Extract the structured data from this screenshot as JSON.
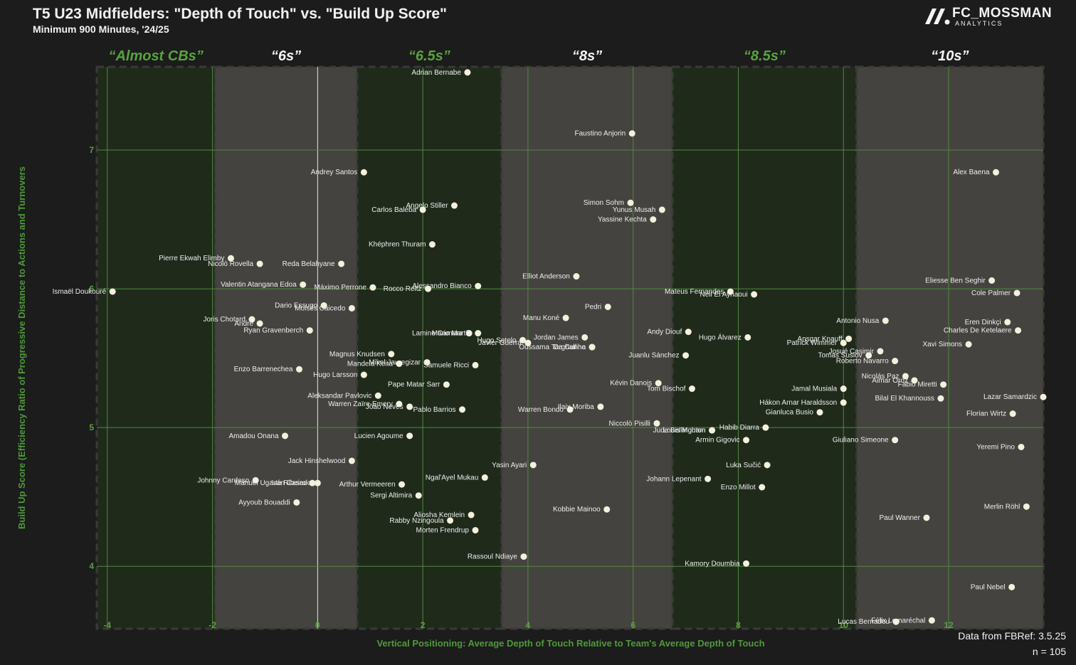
{
  "header": {
    "title": "T5 U23 Midfielders: \"Depth of Touch\" vs. \"Build Up Score\"",
    "subtitle": "Minimum 900 Minutes, '24/25"
  },
  "logo": {
    "name": "FC_MOSSMAN",
    "sub": "ANALYTICS"
  },
  "footer": {
    "source": "Data from FBRef: 3.5.25",
    "count": "n = 105"
  },
  "chart_data": {
    "type": "scatter",
    "xlabel": "Vertical Positioning: Average Depth of Touch Relative to Team's Average Depth of Touch",
    "ylabel": "Build Up Score (Efficiency Ratio of Progressive Distance to Actions and Turnovers",
    "xlim": [
      -4.2,
      13.8
    ],
    "ylim": [
      3.55,
      7.6
    ],
    "xticks": [
      "-4",
      "-2",
      "0",
      "2",
      "4",
      "6",
      "8",
      "10",
      "12"
    ],
    "xtick_values": [
      -4,
      -2,
      0,
      2,
      4,
      6,
      8,
      10,
      12
    ],
    "yticks": [
      "4",
      "5",
      "6",
      "7"
    ],
    "ytick_values": [
      4,
      5,
      6,
      7
    ],
    "grid": true,
    "colors": {
      "green_zone": "#1f2a1b",
      "gray_zone": "#454340",
      "grid": "#4f8a3c",
      "point": "#f3f1dc",
      "green_label": "#58a43c"
    },
    "zones": [
      {
        "label": "“Almost CBs”",
        "x0": -4.2,
        "x1": -1.95,
        "fill": "green"
      },
      {
        "label": "“6s”",
        "x0": -1.95,
        "x1": 0.75,
        "fill": "gray"
      },
      {
        "label": "“6.5s”",
        "x0": 0.75,
        "x1": 3.5,
        "fill": "green"
      },
      {
        "label": "“8s”",
        "x0": 3.5,
        "x1": 6.75,
        "fill": "gray"
      },
      {
        "label": "“8.5s”",
        "x0": 6.75,
        "x1": 10.25,
        "fill": "green"
      },
      {
        "label": "“10s”",
        "x0": 10.25,
        "x1": 13.8,
        "fill": "gray"
      }
    ],
    "points": [
      {
        "name": "Ismaël Doukouré",
        "x": -3.9,
        "y": 5.98
      },
      {
        "name": "Pierre Ekwah Elimby",
        "x": -1.65,
        "y": 6.22
      },
      {
        "name": "Nicolò Rovella",
        "x": -1.1,
        "y": 6.18
      },
      {
        "name": "Reda Belahyane",
        "x": 0.45,
        "y": 6.18
      },
      {
        "name": "Valentin Atangana Edoa",
        "x": -0.28,
        "y": 6.03
      },
      {
        "name": "Máximo Perrone",
        "x": 1.05,
        "y": 6.01
      },
      {
        "name": "Rocco Reitz",
        "x": 2.1,
        "y": 6.0
      },
      {
        "name": "Alessandro Bianco",
        "x": 3.05,
        "y": 6.02
      },
      {
        "name": "Dario Essugo",
        "x": 0.12,
        "y": 5.88
      },
      {
        "name": "Moisés Caicedo",
        "x": 0.65,
        "y": 5.86
      },
      {
        "name": "Joris Chotard",
        "x": -1.25,
        "y": 5.78
      },
      {
        "name": "André",
        "x": -1.1,
        "y": 5.75
      },
      {
        "name": "Ryan Gravenberch",
        "x": -0.15,
        "y": 5.7
      },
      {
        "name": "Andrey Santos",
        "x": 0.88,
        "y": 6.84
      },
      {
        "name": "Angelo Stiller",
        "x": 2.6,
        "y": 6.6
      },
      {
        "name": "Carlos Baleba",
        "x": 2.0,
        "y": 6.57
      },
      {
        "name": "Khéphren Thuram",
        "x": 2.18,
        "y": 6.32
      },
      {
        "name": "Adrian Bernabe",
        "x": 2.85,
        "y": 7.56
      },
      {
        "name": "Lamine Camara",
        "x": 2.88,
        "y": 5.68
      },
      {
        "name": "Mario Martín",
        "x": 3.05,
        "y": 5.68
      },
      {
        "name": "Hugo Sotelo",
        "x": 3.9,
        "y": 5.63
      },
      {
        "name": "Magnus Knudsen",
        "x": 1.4,
        "y": 5.53
      },
      {
        "name": "Mandela Keita",
        "x": 1.55,
        "y": 5.46
      },
      {
        "name": "Mikel Jauregizar",
        "x": 2.08,
        "y": 5.47
      },
      {
        "name": "Samuele Ricci",
        "x": 3.0,
        "y": 5.45
      },
      {
        "name": "Enzo Barrenechea",
        "x": -0.35,
        "y": 5.42
      },
      {
        "name": "Hugo Larsson",
        "x": 0.88,
        "y": 5.38
      },
      {
        "name": "Pape Matar Sarr",
        "x": 2.45,
        "y": 5.31
      },
      {
        "name": "Aleksandar Pavlovic",
        "x": 1.15,
        "y": 5.23
      },
      {
        "name": "Warren Zaïre-Emery",
        "x": 1.55,
        "y": 5.17
      },
      {
        "name": "João Neves",
        "x": 1.75,
        "y": 5.15
      },
      {
        "name": "Pablo Barrios",
        "x": 2.75,
        "y": 5.13
      },
      {
        "name": "Amadou Onana",
        "x": -0.62,
        "y": 4.94
      },
      {
        "name": "Lucien Agoume",
        "x": 1.75,
        "y": 4.94
      },
      {
        "name": "Jack Hinshelwood",
        "x": 0.65,
        "y": 4.76
      },
      {
        "name": "Johnny Cardoso",
        "x": -1.18,
        "y": 4.62
      },
      {
        "name": "Manuel Ugarte Ribeiro",
        "x": -0.1,
        "y": 4.6
      },
      {
        "name": "Iván Casado",
        "x": 0.0,
        "y": 4.6
      },
      {
        "name": "Arthur Vermeeren",
        "x": 1.6,
        "y": 4.59
      },
      {
        "name": "Sergi Altimira",
        "x": 1.92,
        "y": 4.51
      },
      {
        "name": "Ngal'Ayel Mukau",
        "x": 3.18,
        "y": 4.64
      },
      {
        "name": "Ayyoub Bouaddi",
        "x": -0.4,
        "y": 4.46
      },
      {
        "name": "Aliosha Kemlein",
        "x": 2.92,
        "y": 4.37
      },
      {
        "name": "Rabby Nzingoula",
        "x": 2.52,
        "y": 4.33
      },
      {
        "name": "Morten Frendrup",
        "x": 3.0,
        "y": 4.26
      },
      {
        "name": "Rassoul Ndiaye",
        "x": 3.92,
        "y": 4.07
      },
      {
        "name": "Faustino Anjorin",
        "x": 5.98,
        "y": 7.12
      },
      {
        "name": "Simon Sohm",
        "x": 5.95,
        "y": 6.62
      },
      {
        "name": "Yunus Musah",
        "x": 6.55,
        "y": 6.57
      },
      {
        "name": "Yassine Kechta",
        "x": 6.38,
        "y": 6.5
      },
      {
        "name": "Elliot Anderson",
        "x": 4.92,
        "y": 6.09
      },
      {
        "name": "Pedri",
        "x": 5.52,
        "y": 5.87
      },
      {
        "name": "Manu Koné",
        "x": 4.72,
        "y": 5.79
      },
      {
        "name": "Yasin Ayari",
        "x": 4.1,
        "y": 4.73
      },
      {
        "name": "Jordan James",
        "x": 5.08,
        "y": 5.65
      },
      {
        "name": "Javier Guerra",
        "x": 4.0,
        "y": 5.61
      },
      {
        "name": "Da Cunha",
        "x": 5.22,
        "y": 5.58
      },
      {
        "name": "Oussama Targhalline",
        "x": 5.22,
        "y": 5.58
      },
      {
        "name": "Warren Bondo",
        "x": 4.8,
        "y": 5.13
      },
      {
        "name": "Ilaix Moriba",
        "x": 5.38,
        "y": 5.15
      },
      {
        "name": "Kobbie Mainoo",
        "x": 5.5,
        "y": 4.41
      },
      {
        "name": "Niccolò Pisilli",
        "x": 6.45,
        "y": 5.03
      },
      {
        "name": "Kévin Danois",
        "x": 6.48,
        "y": 5.32
      },
      {
        "name": "Tom Bischof",
        "x": 7.12,
        "y": 5.28
      },
      {
        "name": "Louis Mouton",
        "x": 7.5,
        "y": 4.98
      },
      {
        "name": "Jude Bellingham",
        "x": 7.5,
        "y": 4.98
      },
      {
        "name": "Andy Diouf",
        "x": 7.05,
        "y": 5.69
      },
      {
        "name": "Hugo Álvarez",
        "x": 8.18,
        "y": 5.65
      },
      {
        "name": "Juanlu Sánchez",
        "x": 7.0,
        "y": 5.52
      },
      {
        "name": "Mateus Fernandes",
        "x": 7.85,
        "y": 5.98
      },
      {
        "name": "Neil El Aynaoui",
        "x": 8.3,
        "y": 5.96
      },
      {
        "name": "Habib Diarra",
        "x": 8.52,
        "y": 5.0
      },
      {
        "name": "Armin Gigovic",
        "x": 8.15,
        "y": 4.91
      },
      {
        "name": "Luka Sučić",
        "x": 8.55,
        "y": 4.73
      },
      {
        "name": "Johann Lepenant",
        "x": 7.42,
        "y": 4.63
      },
      {
        "name": "Enzo Millot",
        "x": 8.45,
        "y": 4.57
      },
      {
        "name": "Kamory Doumbia",
        "x": 8.15,
        "y": 4.02
      },
      {
        "name": "Gianluca Busio",
        "x": 9.55,
        "y": 5.11
      },
      {
        "name": "Jamal Musiala",
        "x": 10.0,
        "y": 5.28
      },
      {
        "name": "Hákon Arnar Haraldsson",
        "x": 10.0,
        "y": 5.18
      },
      {
        "name": "Ansgar Knauff",
        "x": 10.1,
        "y": 5.64
      },
      {
        "name": "Patrick Wimmer",
        "x": 10.0,
        "y": 5.61
      },
      {
        "name": "Antonio Nusa",
        "x": 10.8,
        "y": 5.77
      },
      {
        "name": "Josué Casimir",
        "x": 10.7,
        "y": 5.55
      },
      {
        "name": "Tomas Suslov",
        "x": 10.48,
        "y": 5.52
      },
      {
        "name": "Roberto Navarro",
        "x": 10.98,
        "y": 5.48
      },
      {
        "name": "Nicolás Paz",
        "x": 11.18,
        "y": 5.37
      },
      {
        "name": "Aimar Oroz",
        "x": 11.35,
        "y": 5.34
      },
      {
        "name": "Fabio Miretti",
        "x": 11.9,
        "y": 5.31
      },
      {
        "name": "Bilal El Khannouss",
        "x": 11.85,
        "y": 5.21
      },
      {
        "name": "Giuliano Simeone",
        "x": 10.98,
        "y": 4.91
      },
      {
        "name": "Alex Baena",
        "x": 12.9,
        "y": 6.84
      },
      {
        "name": "Eliesse Ben Seghir",
        "x": 12.82,
        "y": 6.06
      },
      {
        "name": "Cole Palmer",
        "x": 13.3,
        "y": 5.97
      },
      {
        "name": "Eren Dinkçi",
        "x": 13.12,
        "y": 5.76
      },
      {
        "name": "Charles De Ketelaere",
        "x": 13.32,
        "y": 5.7
      },
      {
        "name": "Xavi Simons",
        "x": 12.38,
        "y": 5.6
      },
      {
        "name": "Lazar Samardzic",
        "x": 13.8,
        "y": 5.22
      },
      {
        "name": "Florian Wirtz",
        "x": 13.22,
        "y": 5.1
      },
      {
        "name": "Yeremi Pino",
        "x": 13.38,
        "y": 4.86
      },
      {
        "name": "Merlin Röhl",
        "x": 13.48,
        "y": 4.43
      },
      {
        "name": "Paul Wanner",
        "x": 11.58,
        "y": 4.35
      },
      {
        "name": "Paul Nebel",
        "x": 13.2,
        "y": 3.85
      },
      {
        "name": "Lucas Bernadou",
        "x": 11.0,
        "y": 3.6
      },
      {
        "name": "Félix Lemaréchal",
        "x": 11.68,
        "y": 3.61
      }
    ]
  }
}
